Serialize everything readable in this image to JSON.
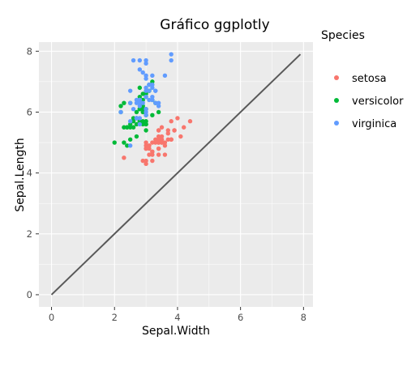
{
  "chart_data": {
    "type": "scatter",
    "title": "Gráfico ggplotly",
    "xlabel": "Sepal.Width",
    "ylabel": "Sepal.Length",
    "xlim": [
      -0.4,
      8.3
    ],
    "ylim": [
      -0.4,
      8.3
    ],
    "x_ticks": [
      0,
      2,
      4,
      6,
      8
    ],
    "y_ticks": [
      0,
      2,
      4,
      6,
      8
    ],
    "grid": true,
    "legend": {
      "title": "Species",
      "position": "right"
    },
    "reference_line": {
      "x": [
        0,
        7.9
      ],
      "y": [
        0,
        7.9
      ],
      "color": "#595959"
    },
    "series": [
      {
        "name": "setosa",
        "color": "#F8766D",
        "x": [
          3.5,
          3.0,
          3.2,
          3.1,
          3.6,
          3.9,
          3.4,
          3.4,
          2.9,
          3.1,
          3.7,
          3.4,
          3.0,
          3.0,
          4.0,
          4.4,
          3.9,
          3.5,
          3.8,
          3.8,
          3.4,
          3.7,
          3.6,
          3.3,
          3.4,
          3.0,
          3.4,
          3.5,
          3.4,
          3.2,
          3.1,
          3.4,
          4.1,
          4.2,
          3.1,
          3.2,
          3.5,
          3.6,
          3.0,
          3.4,
          3.5,
          2.3,
          3.2,
          3.5,
          3.8,
          3.0,
          3.8,
          3.2,
          3.7,
          3.3
        ],
        "y": [
          5.1,
          4.9,
          4.7,
          4.6,
          5.0,
          5.4,
          4.6,
          5.0,
          4.4,
          4.9,
          5.4,
          4.8,
          4.8,
          4.3,
          5.8,
          5.7,
          5.4,
          5.1,
          5.7,
          5.1,
          5.4,
          5.1,
          4.6,
          5.1,
          4.8,
          5.0,
          5.0,
          5.2,
          5.2,
          4.7,
          4.8,
          5.4,
          5.2,
          5.5,
          4.9,
          5.0,
          5.5,
          4.9,
          4.4,
          5.1,
          5.0,
          4.5,
          4.4,
          5.0,
          5.1,
          4.8,
          5.1,
          4.6,
          5.3,
          5.0
        ]
      },
      {
        "name": "versicolor",
        "color": "#00BA38",
        "x": [
          3.2,
          3.2,
          3.1,
          2.3,
          2.8,
          2.8,
          3.3,
          2.4,
          2.9,
          2.7,
          2.0,
          3.0,
          2.2,
          2.9,
          2.9,
          3.1,
          3.0,
          2.7,
          2.2,
          2.5,
          3.2,
          2.8,
          2.5,
          2.8,
          2.9,
          3.0,
          2.8,
          3.0,
          2.9,
          2.6,
          2.4,
          2.4,
          2.7,
          2.7,
          3.0,
          3.4,
          3.1,
          2.3,
          3.0,
          2.5,
          2.6,
          3.0,
          2.6,
          2.3,
          2.7,
          3.0,
          2.9,
          2.9,
          2.5,
          2.8
        ],
        "y": [
          7.0,
          6.4,
          6.9,
          5.5,
          6.5,
          5.7,
          6.3,
          4.9,
          6.6,
          5.2,
          5.0,
          5.9,
          6.0,
          6.1,
          5.6,
          6.7,
          5.6,
          5.8,
          6.2,
          5.6,
          5.9,
          6.1,
          6.3,
          6.1,
          6.4,
          6.6,
          6.8,
          6.7,
          6.0,
          5.7,
          5.5,
          5.5,
          5.8,
          6.0,
          5.4,
          6.0,
          6.7,
          6.3,
          5.6,
          5.5,
          5.5,
          6.1,
          5.8,
          5.0,
          5.6,
          5.7,
          5.7,
          6.2,
          5.1,
          5.7
        ]
      },
      {
        "name": "virginica",
        "color": "#619CFF",
        "x": [
          3.3,
          2.7,
          3.0,
          2.9,
          3.0,
          3.0,
          2.5,
          2.9,
          2.5,
          3.6,
          3.2,
          2.7,
          3.0,
          2.5,
          2.8,
          3.2,
          3.0,
          3.8,
          2.6,
          2.2,
          3.2,
          2.8,
          2.8,
          2.7,
          3.3,
          3.2,
          2.8,
          3.0,
          2.8,
          3.0,
          2.8,
          3.8,
          2.8,
          2.8,
          2.6,
          3.0,
          3.4,
          3.1,
          3.0,
          3.1,
          3.1,
          3.1,
          2.7,
          3.2,
          3.3,
          3.0,
          2.5,
          3.0,
          3.4,
          3.0
        ],
        "y": [
          6.3,
          5.8,
          7.1,
          6.3,
          6.5,
          7.6,
          4.9,
          7.3,
          6.7,
          7.2,
          6.5,
          6.4,
          6.8,
          5.7,
          5.8,
          6.4,
          6.5,
          7.7,
          7.7,
          6.0,
          6.9,
          5.6,
          7.7,
          6.3,
          6.7,
          7.2,
          6.2,
          6.1,
          6.4,
          7.2,
          7.4,
          7.9,
          6.4,
          6.3,
          6.1,
          7.7,
          6.3,
          6.4,
          6.0,
          6.9,
          6.7,
          6.9,
          5.8,
          6.8,
          6.7,
          6.7,
          6.3,
          6.5,
          6.2,
          5.9
        ]
      }
    ]
  }
}
